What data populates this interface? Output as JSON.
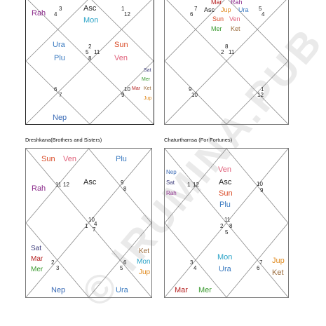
{
  "colors": {
    "Asc": "#222222",
    "Sun": "#d94a26",
    "Mon": "#2aa3c7",
    "Mar": "#b52222",
    "Mer": "#3a9a2f",
    "Jup": "#e08a1e",
    "Ven": "#e0607a",
    "Sat": "#3b3b7a",
    "Rah": "#8a2a8a",
    "Ket": "#9a6a3a",
    "Ura": "#3a7ac0",
    "Nep": "#3a6ab5",
    "Plu": "#3a7ac0"
  },
  "watermark": "© IRUMINA.PUB",
  "charts": [
    {
      "id": "top-left",
      "title": "",
      "numbers": [
        "3",
        "4",
        "1",
        "12",
        "2",
        "5",
        "11",
        "8",
        "6",
        "7",
        "10",
        "9"
      ],
      "planets": [
        "Rah",
        "Asc",
        "Mon",
        "Ura",
        "Plu",
        "Sun",
        "Ven",
        "Sat",
        "Mer",
        "Mar",
        "Ket",
        "Jup",
        "Nep"
      ]
    },
    {
      "id": "top-right",
      "title": "",
      "numbers": [
        "7",
        "6",
        "5",
        "4",
        "8",
        "2",
        "11",
        "9",
        "10",
        "1",
        "12"
      ],
      "planets": [
        "Mar",
        "Rah",
        "Asc",
        "Jup",
        "Ura",
        "Sun",
        "Ven",
        "Mer",
        "Ket"
      ]
    },
    {
      "id": "bottom-left",
      "title": "Dreshkana(Brothers and Sisters)",
      "numbers": [
        "11",
        "12",
        "9",
        "8",
        "10",
        "1",
        "4",
        "7",
        "2",
        "3",
        "6",
        "5"
      ],
      "planets": [
        "Sun",
        "Ven",
        "Plu",
        "Rah",
        "Asc",
        "Sat",
        "Mar",
        "Mer",
        "Ket",
        "Mon",
        "Jup",
        "Nep",
        "Ura"
      ]
    },
    {
      "id": "bottom-right",
      "title": "Chaturthamsa (For Fortunes)",
      "numbers": [
        "1",
        "12",
        "10",
        "9",
        "11",
        "2",
        "8",
        "5",
        "3",
        "4",
        "7",
        "6"
      ],
      "planets": [
        "Nep",
        "Sat",
        "Rah",
        "Ven",
        "Asc",
        "Sun",
        "Plu",
        "Mon",
        "Ura",
        "Jup",
        "Ket",
        "Mar",
        "Mer"
      ]
    }
  ]
}
